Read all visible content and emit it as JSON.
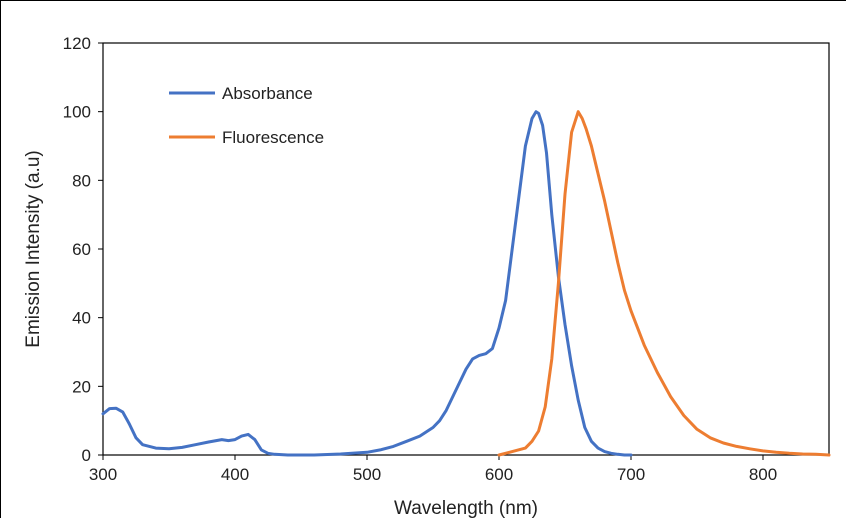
{
  "chart_data": {
    "type": "line",
    "title": "",
    "xlabel": "Wavelength (nm)",
    "ylabel": "Emission Intensity (a.u)",
    "xlim": [
      300,
      850
    ],
    "ylim": [
      0,
      120
    ],
    "x_ticks": [
      300,
      400,
      500,
      600,
      700,
      800
    ],
    "y_ticks": [
      0,
      20,
      40,
      60,
      80,
      100,
      120
    ],
    "grid": false,
    "legend_position": "top-left",
    "series": [
      {
        "name": "Absorbance",
        "color": "#4472C4",
        "x": [
          300,
          305,
          310,
          315,
          320,
          325,
          330,
          340,
          350,
          360,
          370,
          380,
          390,
          395,
          400,
          405,
          410,
          415,
          420,
          425,
          430,
          440,
          460,
          480,
          500,
          510,
          520,
          530,
          540,
          550,
          555,
          560,
          565,
          570,
          575,
          580,
          585,
          590,
          595,
          600,
          605,
          610,
          615,
          620,
          625,
          628,
          630,
          633,
          636,
          640,
          645,
          650,
          655,
          660,
          665,
          670,
          675,
          680,
          685,
          690,
          695,
          700
        ],
        "y": [
          12,
          13.5,
          13.6,
          12.5,
          9,
          5,
          3,
          2,
          1.8,
          2.2,
          3,
          3.8,
          4.5,
          4.2,
          4.5,
          5.5,
          6,
          4.5,
          1.5,
          0.5,
          0.2,
          0,
          0,
          0.3,
          0.8,
          1.5,
          2.5,
          4,
          5.5,
          8,
          10,
          13,
          17,
          21,
          25,
          28,
          29,
          29.5,
          31,
          37,
          45,
          60,
          75,
          90,
          98,
          100,
          99.5,
          96,
          88,
          70,
          52,
          38,
          26,
          16,
          8,
          4,
          2,
          1,
          0.5,
          0.2,
          0,
          0
        ]
      },
      {
        "name": "Fluorescence",
        "color": "#ED7D31",
        "x": [
          600,
          610,
          620,
          625,
          630,
          635,
          640,
          645,
          650,
          655,
          660,
          663,
          666,
          670,
          675,
          680,
          685,
          690,
          695,
          700,
          710,
          720,
          730,
          740,
          750,
          760,
          770,
          780,
          790,
          800,
          810,
          820,
          830,
          840,
          850
        ],
        "y": [
          0,
          1,
          2,
          4,
          7,
          14,
          28,
          50,
          76,
          94,
          100,
          98,
          95,
          90,
          82,
          74,
          65,
          56,
          48,
          42,
          32,
          24,
          17,
          11.5,
          7.5,
          5,
          3.5,
          2.5,
          1.8,
          1.2,
          0.8,
          0.5,
          0.3,
          0.2,
          0
        ]
      }
    ]
  }
}
